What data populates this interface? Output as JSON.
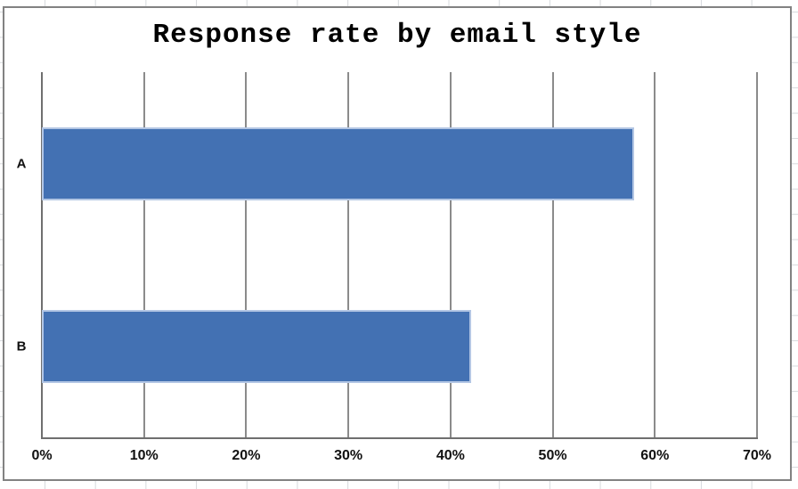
{
  "chart_data": {
    "type": "bar",
    "orientation": "horizontal",
    "title": "Response rate by email style",
    "categories": [
      "A",
      "B"
    ],
    "values": [
      58,
      42
    ],
    "series": [
      {
        "name": "Response rate",
        "values": [
          58,
          42
        ]
      }
    ],
    "xlabel": "",
    "ylabel": "",
    "xlim": [
      0,
      70
    ],
    "x_tick_values": [
      0,
      10,
      20,
      30,
      40,
      50,
      60,
      70
    ],
    "x_tick_labels": [
      "0%",
      "10%",
      "20%",
      "30%",
      "40%",
      "50%",
      "60%",
      "70%"
    ],
    "grid": true,
    "legend": false,
    "colors": {
      "bar_fill": "#4371B3",
      "bar_border": "#B3C6E4",
      "gridline": "#8B8B8B",
      "axis_line": "#6F6F6F",
      "chart_border": "#828282",
      "worksheet_gridline": "#D7DADD",
      "title_text": "#000000",
      "label_text": "#111111"
    }
  }
}
